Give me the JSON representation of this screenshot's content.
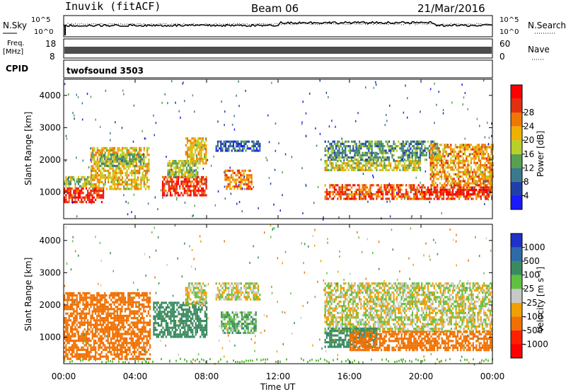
{
  "header": {
    "site": "Inuvik (fitACF)",
    "beam": "Beam 06",
    "date": "21/Mar/2016"
  },
  "top_panels": {
    "nsky_label": "N.Sky",
    "nsky_ticks": [
      "10^5",
      "10^0"
    ],
    "nsearch_label": "N.Search",
    "nsearch_ticks": [
      "10^5",
      "10^0"
    ],
    "freq_label_1": "Freq.",
    "freq_label_2": "[MHz]",
    "freq_ticks": [
      "18",
      "8"
    ],
    "nave_label": "Nave",
    "nave_ticks": [
      "60",
      "0"
    ],
    "cpid_label": "CPID",
    "cpid_value": "twofsound 3503"
  },
  "axes": {
    "ylabel": "Slant Range [km]",
    "xlabel": "Time UT",
    "y_ticks": [
      "1000",
      "2000",
      "3000",
      "4000"
    ],
    "x_ticks": [
      "00:00",
      "04:00",
      "08:00",
      "12:00",
      "16:00",
      "20:00",
      "00:00"
    ]
  },
  "power_scale": {
    "label": "Power [dB]",
    "ticks": [
      "4",
      "8",
      "12",
      "16",
      "20",
      "24",
      "28"
    ],
    "colors": [
      "#1a1aff",
      "#2040a8",
      "#3a7a8c",
      "#58a050",
      "#b8d028",
      "#f0b000",
      "#f07800",
      "#e03010",
      "#ff0000"
    ]
  },
  "velocity_scale": {
    "label": "Velocity [m s⁻¹]",
    "ticks": [
      "1000",
      "500",
      "100",
      "25",
      "-25",
      "-100",
      "-500",
      "-1000"
    ],
    "colors": [
      "#2030c8",
      "#2e6aa8",
      "#3a8a60",
      "#60c040",
      "#c8c8c8",
      "#f0a000",
      "#f07000",
      "#ff2000",
      "#ff0000"
    ]
  },
  "chart_data": {
    "type": "heatmap",
    "title": "Beam 06",
    "xlabel": "Time UT",
    "ylabel": "Slant Range [km]",
    "x_range_hours": [
      0,
      24
    ],
    "y_range_km": [
      180,
      4500
    ],
    "power_range_db": [
      0,
      30
    ],
    "velocity_range_ms": [
      -1000,
      1000
    ],
    "power_regions": [
      {
        "t0": 0.0,
        "t1": 2.2,
        "r0": 700,
        "r1": 1150,
        "value_db": 26
      },
      {
        "t0": 0.0,
        "t1": 1.5,
        "r0": 1150,
        "r1": 1500,
        "value_db": 14
      },
      {
        "t0": 1.5,
        "t1": 4.8,
        "r0": 1100,
        "r1": 2400,
        "value_db": 18
      },
      {
        "t0": 2.0,
        "t1": 4.5,
        "r0": 1800,
        "r1": 2200,
        "value_db": 12
      },
      {
        "t0": 5.5,
        "t1": 8.0,
        "r0": 900,
        "r1": 1500,
        "value_db": 26
      },
      {
        "t0": 5.8,
        "t1": 7.5,
        "r0": 1500,
        "r1": 2000,
        "value_db": 14
      },
      {
        "t0": 6.8,
        "t1": 8.0,
        "r0": 1900,
        "r1": 2700,
        "value_db": 18
      },
      {
        "t0": 9.0,
        "t1": 10.5,
        "r0": 1100,
        "r1": 1700,
        "value_db": 22
      },
      {
        "t0": 8.5,
        "t1": 11.0,
        "r0": 2300,
        "r1": 2600,
        "value_db": 6
      },
      {
        "t0": 14.6,
        "t1": 24.0,
        "r0": 800,
        "r1": 1250,
        "value_db": 24
      },
      {
        "t0": 14.6,
        "t1": 20.0,
        "r0": 1650,
        "r1": 2000,
        "value_db": 16
      },
      {
        "t0": 14.6,
        "t1": 21.0,
        "r0": 2000,
        "r1": 2600,
        "value_db": 10
      },
      {
        "t0": 20.5,
        "t1": 24.0,
        "r0": 1300,
        "r1": 2500,
        "value_db": 20
      },
      {
        "t0": 20.0,
        "t1": 24.0,
        "r0": 900,
        "r1": 1100,
        "value_db": 28
      }
    ],
    "velocity_regions": [
      {
        "t0": 0.0,
        "t1": 4.8,
        "r0": 300,
        "r1": 2400,
        "value_ms": -250
      },
      {
        "t0": 5.0,
        "t1": 8.0,
        "r0": 1000,
        "r1": 2100,
        "value_ms": 200
      },
      {
        "t0": 6.8,
        "t1": 8.0,
        "r0": 2000,
        "r1": 2700,
        "value_ms": 0
      },
      {
        "t0": 8.8,
        "t1": 10.8,
        "r0": 1100,
        "r1": 1800,
        "value_ms": 80
      },
      {
        "t0": 8.5,
        "t1": 11.0,
        "r0": 2200,
        "r1": 2700,
        "value_ms": 0
      },
      {
        "t0": 14.6,
        "t1": 24.0,
        "r0": 1200,
        "r1": 2700,
        "value_ms": 0
      },
      {
        "t0": 14.6,
        "t1": 17.5,
        "r0": 700,
        "r1": 1300,
        "value_ms": 200
      },
      {
        "t0": 16.0,
        "t1": 24.0,
        "r0": 600,
        "r1": 1200,
        "value_ms": -200
      }
    ],
    "nsky_level_log10": 3.5,
    "nsearch_level_log10": 3.7,
    "freq_mhz": 10.5,
    "nave": 20
  }
}
